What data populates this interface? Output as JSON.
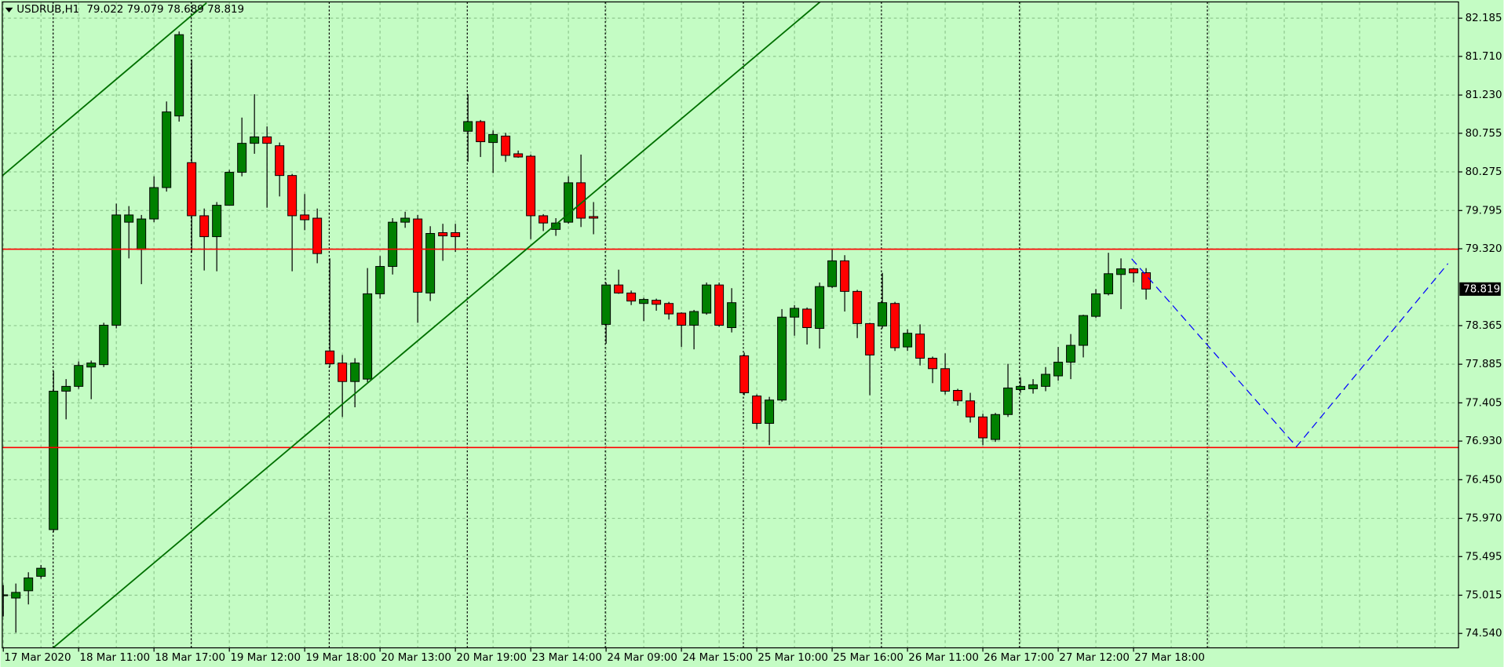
{
  "chart_data": {
    "type": "candlestick",
    "title": "USDRUB,H1",
    "up_color": "#008000",
    "down_color": "#ff0000",
    "background": "#c4fcc4",
    "grid": true,
    "categories": [
      "17 Mar 2020",
      null,
      null,
      null,
      null,
      null,
      "18 Mar 11:00",
      null,
      null,
      null,
      null,
      null,
      "18 Mar 17:00",
      null,
      null,
      null,
      null,
      null,
      "19 Mar 12:00",
      null,
      null,
      null,
      null,
      null,
      "19 Mar 18:00",
      null,
      null,
      null,
      null,
      null,
      "20 Mar 13:00",
      null,
      null,
      null,
      null,
      null,
      "20 Mar 19:00",
      null,
      null,
      null,
      null,
      null,
      "23 Mar 14:00",
      null,
      null,
      null,
      null,
      null,
      "24 Mar 09:00",
      null,
      null,
      null,
      null,
      null,
      "24 Mar 15:00",
      null,
      null,
      null,
      null,
      null,
      "25 Mar 10:00",
      null,
      null,
      null,
      null,
      null,
      "25 Mar 16:00",
      null,
      null,
      null,
      null,
      null,
      "26 Mar 11:00",
      null,
      null,
      null,
      null,
      null,
      "26 Mar 17:00",
      null,
      null,
      null,
      null,
      null,
      "27 Mar 12:00",
      null,
      null,
      null,
      null,
      null,
      "27 Mar 18:00",
      null
    ],
    "open": [
      75.01,
      74.98,
      75.07,
      75.25,
      75.83,
      77.55,
      77.61,
      77.85,
      77.88,
      78.37,
      79.65,
      79.31,
      79.69,
      80.08,
      80.97,
      80.39,
      79.73,
      79.47,
      79.86,
      80.27,
      80.63,
      80.71,
      80.6,
      80.23,
      79.74,
      79.7,
      78.05,
      77.9,
      77.67,
      77.7,
      78.76,
      79.1,
      79.65,
      79.69,
      78.77,
      79.52,
      79.52,
      80.78,
      80.9,
      80.64,
      80.72,
      80.5,
      80.47,
      79.73,
      79.56,
      79.65,
      80.14,
      79.72,
      78.38,
      78.87,
      78.77,
      78.64,
      78.68,
      78.64,
      78.52,
      78.37,
      78.52,
      78.87,
      78.34,
      77.99,
      77.49,
      77.15,
      77.44,
      78.47,
      78.57,
      78.33,
      78.85,
      79.17,
      78.79,
      78.39,
      78.36,
      78.64,
      78.1,
      78.26,
      77.96,
      77.83,
      77.56,
      77.43,
      77.23,
      76.95,
      77.26,
      77.57,
      77.58,
      77.61,
      77.74,
      77.91,
      78.12,
      78.48,
      78.76,
      79.0,
      79.07,
      79.022
    ],
    "high": [
      75.14,
      75.16,
      75.3,
      75.39,
      77.8,
      77.7,
      77.92,
      77.93,
      78.4,
      79.88,
      79.85,
      79.74,
      80.22,
      81.15,
      82.02,
      81.67,
      79.82,
      79.9,
      80.3,
      80.95,
      81.24,
      80.84,
      80.64,
      80.25,
      80.0,
      79.82,
      79.2,
      78.0,
      77.96,
      79.08,
      79.23,
      79.7,
      79.78,
      79.74,
      79.6,
      79.63,
      79.63,
      81.24,
      80.92,
      80.79,
      80.76,
      80.54,
      80.49,
      79.75,
      79.7,
      80.22,
      80.49,
      79.9,
      78.9,
      79.06,
      78.8,
      78.71,
      78.7,
      78.66,
      78.53,
      78.56,
      78.9,
      78.9,
      78.83,
      78.03,
      77.51,
      77.48,
      78.57,
      78.62,
      78.59,
      78.9,
      79.32,
      79.24,
      78.81,
      78.4,
      79.02,
      78.66,
      78.32,
      78.38,
      77.98,
      78.02,
      77.58,
      77.53,
      77.27,
      77.28,
      77.89,
      77.72,
      77.7,
      77.85,
      78.1,
      78.26,
      78.5,
      78.82,
      79.27,
      79.2,
      79.08,
      79.079
    ],
    "low": [
      74.75,
      74.55,
      74.9,
      75.22,
      75.8,
      77.2,
      77.58,
      77.45,
      77.85,
      78.33,
      79.2,
      78.88,
      79.65,
      80.03,
      80.9,
      79.27,
      79.05,
      79.04,
      79.86,
      80.22,
      80.5,
      79.83,
      79.97,
      79.04,
      79.55,
      79.14,
      77.85,
      77.23,
      77.35,
      77.66,
      78.7,
      79.0,
      79.58,
      78.4,
      78.67,
      79.17,
      79.28,
      80.4,
      80.46,
      80.26,
      80.4,
      80.45,
      79.44,
      79.54,
      79.48,
      79.63,
      79.59,
      79.5,
      78.14,
      78.76,
      78.62,
      78.42,
      78.55,
      78.44,
      78.1,
      78.07,
      78.5,
      78.35,
      78.28,
      77.5,
      77.08,
      76.88,
      77.42,
      78.24,
      78.13,
      78.08,
      78.83,
      78.54,
      78.21,
      77.5,
      78.33,
      78.05,
      78.05,
      77.87,
      77.65,
      77.51,
      77.37,
      77.16,
      76.88,
      76.92,
      77.23,
      77.53,
      77.52,
      77.55,
      77.68,
      77.7,
      77.97,
      78.46,
      78.74,
      78.57,
      78.9,
      78.689
    ],
    "close": [
      75.02,
      75.05,
      75.23,
      75.35,
      77.55,
      77.61,
      77.87,
      77.9,
      78.37,
      79.74,
      79.74,
      79.69,
      80.08,
      81.02,
      81.98,
      79.73,
      79.47,
      79.86,
      80.27,
      80.63,
      80.71,
      80.63,
      80.23,
      79.73,
      79.68,
      79.26,
      77.89,
      77.67,
      77.9,
      78.76,
      79.1,
      79.65,
      79.7,
      78.78,
      79.51,
      79.48,
      79.47,
      80.9,
      80.65,
      80.74,
      80.48,
      80.46,
      79.73,
      79.64,
      79.64,
      80.14,
      79.7,
      79.7,
      78.87,
      78.77,
      78.67,
      78.69,
      78.63,
      78.51,
      78.37,
      78.54,
      78.87,
      78.37,
      78.65,
      77.53,
      77.15,
      77.44,
      78.47,
      78.58,
      78.34,
      78.85,
      79.17,
      78.79,
      78.39,
      78.0,
      78.65,
      78.09,
      78.27,
      77.96,
      77.83,
      77.55,
      77.43,
      77.23,
      76.97,
      77.26,
      77.59,
      77.61,
      77.63,
      77.76,
      77.91,
      78.12,
      78.49,
      78.76,
      79.01,
      79.07,
      79.02,
      78.819
    ],
    "ylim": [
      74.361,
      82.387
    ],
    "yticks": [
      82.185,
      {
        "value": 81.71,
        "label": "81.710"
      },
      {
        "value": 81.23,
        "label": "81.230"
      },
      80.755,
      80.275,
      79.795,
      {
        "value": 79.32,
        "label": "79.320"
      },
      78.365,
      77.885,
      77.405,
      {
        "value": 76.93,
        "label": "76.930"
      },
      {
        "value": 76.45,
        "label": "76.450"
      },
      {
        "value": 75.97,
        "label": "75.970"
      },
      75.495,
      75.015,
      {
        "value": 74.54,
        "label": "74.540"
      }
    ]
  }
}
